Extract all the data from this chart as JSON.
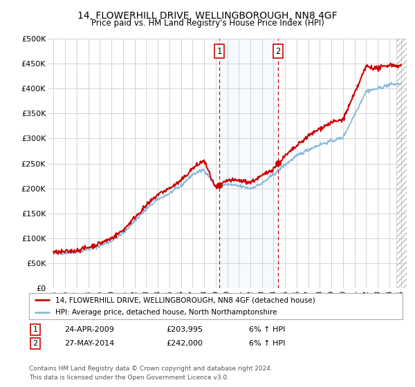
{
  "title": "14, FLOWERHILL DRIVE, WELLINGBOROUGH, NN8 4GF",
  "subtitle": "Price paid vs. HM Land Registry's House Price Index (HPI)",
  "legend_line1": "14, FLOWERHILL DRIVE, WELLINGBOROUGH, NN8 4GF (detached house)",
  "legend_line2": "HPI: Average price, detached house, North Northamptonshire",
  "transaction1_date": "24-APR-2009",
  "transaction1_price": "£203,995",
  "transaction1_hpi": "6% ↑ HPI",
  "transaction1_x": 2009.31,
  "transaction2_date": "27-MAY-2014",
  "transaction2_price": "£242,000",
  "transaction2_hpi": "6% ↑ HPI",
  "transaction2_x": 2014.41,
  "footer": "Contains HM Land Registry data © Crown copyright and database right 2024.\nThis data is licensed under the Open Government Licence v3.0.",
  "ylabel_values": [
    "£0",
    "£50K",
    "£100K",
    "£150K",
    "£200K",
    "£250K",
    "£300K",
    "£350K",
    "£400K",
    "£450K",
    "£500K"
  ],
  "y_numeric": [
    0,
    50000,
    100000,
    150000,
    200000,
    250000,
    300000,
    350000,
    400000,
    450000,
    500000
  ],
  "price_line_color": "#cc0000",
  "hpi_line_color": "#88bbdd",
  "background_color": "#ffffff",
  "grid_color": "#cccccc",
  "vline_color": "#cc0000",
  "shade_color": "#ddeeff",
  "title_fontsize": 10,
  "subtitle_fontsize": 8.5
}
